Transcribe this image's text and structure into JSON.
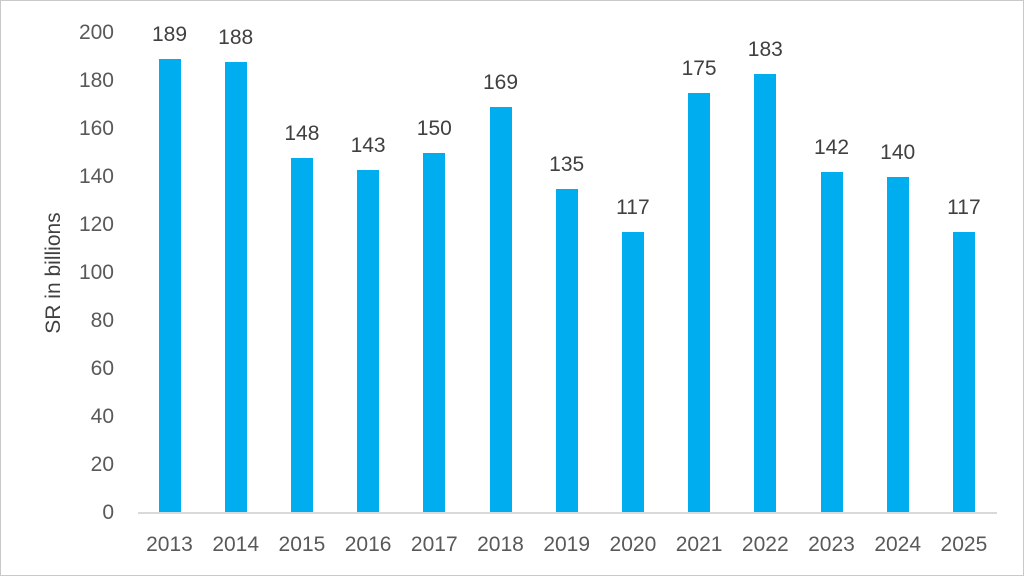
{
  "chart_data": {
    "type": "bar",
    "title": "",
    "xlabel": "",
    "ylabel": "SR in billions",
    "categories": [
      "2013",
      "2014",
      "2015",
      "2016",
      "2017",
      "2018",
      "2019",
      "2020",
      "2021",
      "2022",
      "2023",
      "2024",
      "2025"
    ],
    "values": [
      189,
      188,
      148,
      143,
      150,
      169,
      135,
      117,
      175,
      183,
      142,
      140,
      117
    ],
    "data_labels": [
      "189",
      "188",
      "148",
      "143",
      "150",
      "169",
      "135",
      "117",
      "175",
      "183",
      "142",
      "140",
      "117"
    ],
    "y_ticks": [
      0,
      20,
      40,
      60,
      80,
      100,
      120,
      140,
      160,
      180,
      200
    ],
    "ylim": [
      0,
      200
    ],
    "grid": false,
    "legend": false,
    "colors": {
      "bar_fill": "#00AEEF",
      "axis_line": "#D9D9D9",
      "tick_label": "#595959",
      "data_label": "#404040",
      "frame_border": "#C9C9C9",
      "background": "#FFFFFF"
    }
  }
}
